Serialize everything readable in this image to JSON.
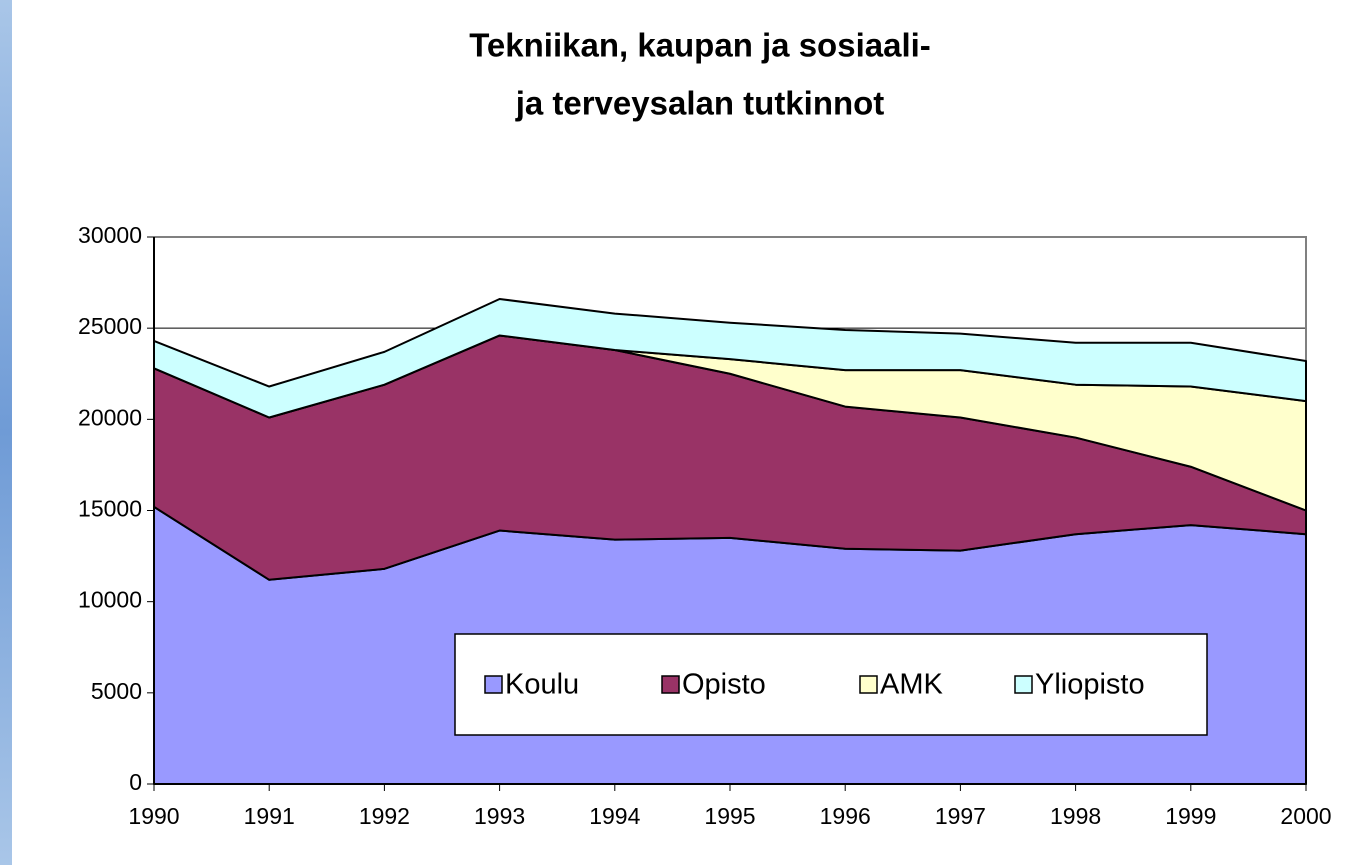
{
  "chart_data": {
    "type": "stacked_area",
    "title": [
      "Tekniikan, kaupan ja sosiaali-",
      "ja terveysalan tutkinnot"
    ],
    "categories": [
      "1990",
      "1991",
      "1992",
      "1993",
      "1994",
      "1995",
      "1996",
      "1997",
      "1998",
      "1999",
      "2000"
    ],
    "series": [
      {
        "name": "Koulu",
        "color": "#9999ff",
        "values": [
          15200,
          11200,
          11800,
          13900,
          13400,
          13500,
          12900,
          12800,
          13700,
          14200,
          13700
        ]
      },
      {
        "name": "Opisto",
        "color": "#993366",
        "values": [
          7600,
          8900,
          10100,
          10700,
          10400,
          9000,
          7800,
          7300,
          5300,
          3200,
          1300
        ]
      },
      {
        "name": "AMK",
        "color": "#ffffcc",
        "values": [
          0,
          0,
          0,
          0,
          0,
          800,
          2000,
          2600,
          2900,
          4400,
          6000
        ]
      },
      {
        "name": "Yliopisto",
        "color": "#ccffff",
        "values": [
          1500,
          1700,
          1800,
          2000,
          2000,
          2000,
          2200,
          2000,
          2300,
          2400,
          2200
        ]
      }
    ],
    "ylim": [
      0,
      30000
    ],
    "yticks": [
      0,
      5000,
      10000,
      15000,
      20000,
      25000,
      30000
    ],
    "grid": true
  }
}
